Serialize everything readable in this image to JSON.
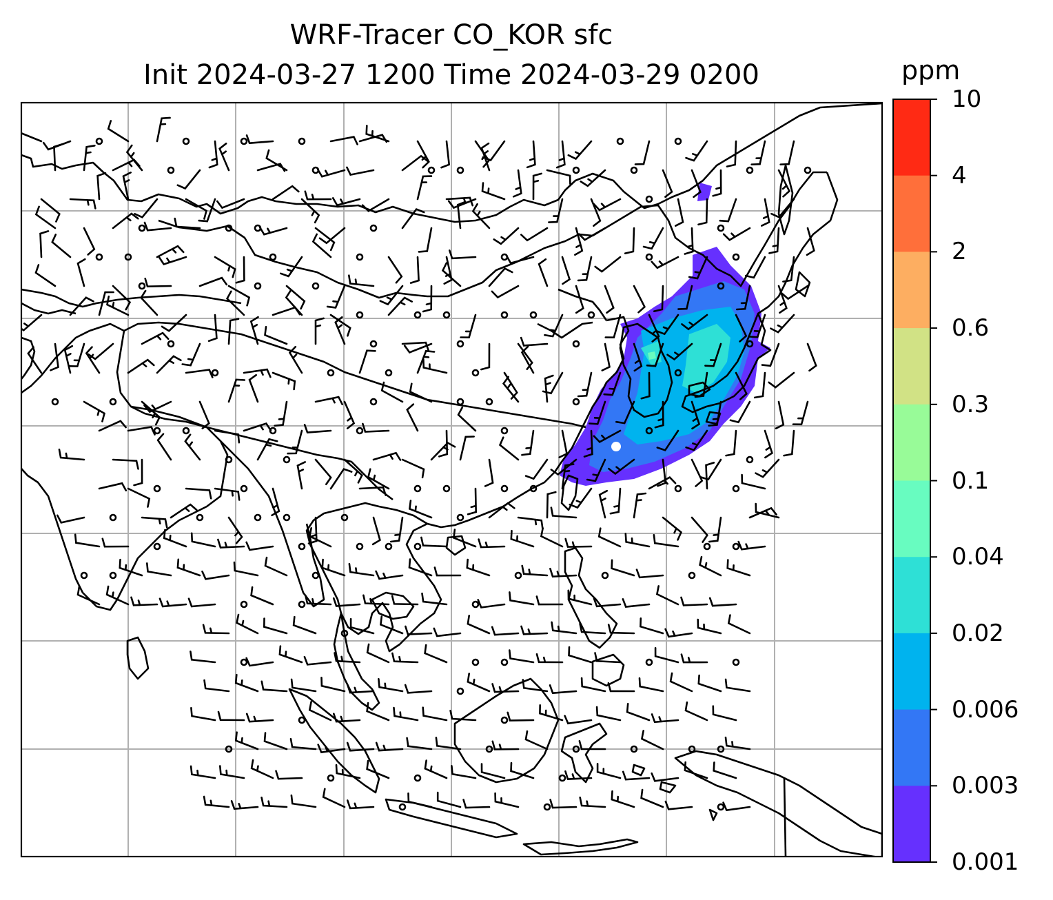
{
  "title": {
    "line1": "WRF-Tracer CO_KOR sfc",
    "line2": "Init 2024-03-27 1200 Time 2024-03-29 0200"
  },
  "colorbar": {
    "unit": "ppm",
    "ticks": [
      "10",
      "4",
      "2",
      "0.6",
      "0.3",
      "0.1",
      "0.04",
      "0.02",
      "0.006",
      "0.003",
      "0.001"
    ],
    "colors": [
      "#ff2a14",
      "#ff6f3a",
      "#fdae61",
      "#d1e285",
      "#98fb98",
      "#68fcc0",
      "#2ee0d6",
      "#00b3ee",
      "#3377f5",
      "#6630fe"
    ]
  },
  "map": {
    "frame_color": "#000000",
    "grid_color": "#b0b0b0",
    "coastline_color": "#000000",
    "wind_barb_color": "#000000"
  },
  "chart_data": {
    "type": "heatmap",
    "variable": "CO_KOR",
    "level": "sfc",
    "init_time": "2024-03-27 1200",
    "valid_time": "2024-03-29 0200",
    "unit": "ppm",
    "levels": [
      0.001,
      0.003,
      0.006,
      0.02,
      0.04,
      0.1,
      0.3,
      0.6,
      2,
      4,
      10
    ],
    "colormap": "rainbow",
    "plume_levels_present": [
      0.001,
      0.003,
      0.006,
      0.02,
      0.04
    ],
    "overlays": [
      "coastlines",
      "country borders",
      "wind barbs",
      "lat/lon grid"
    ]
  }
}
